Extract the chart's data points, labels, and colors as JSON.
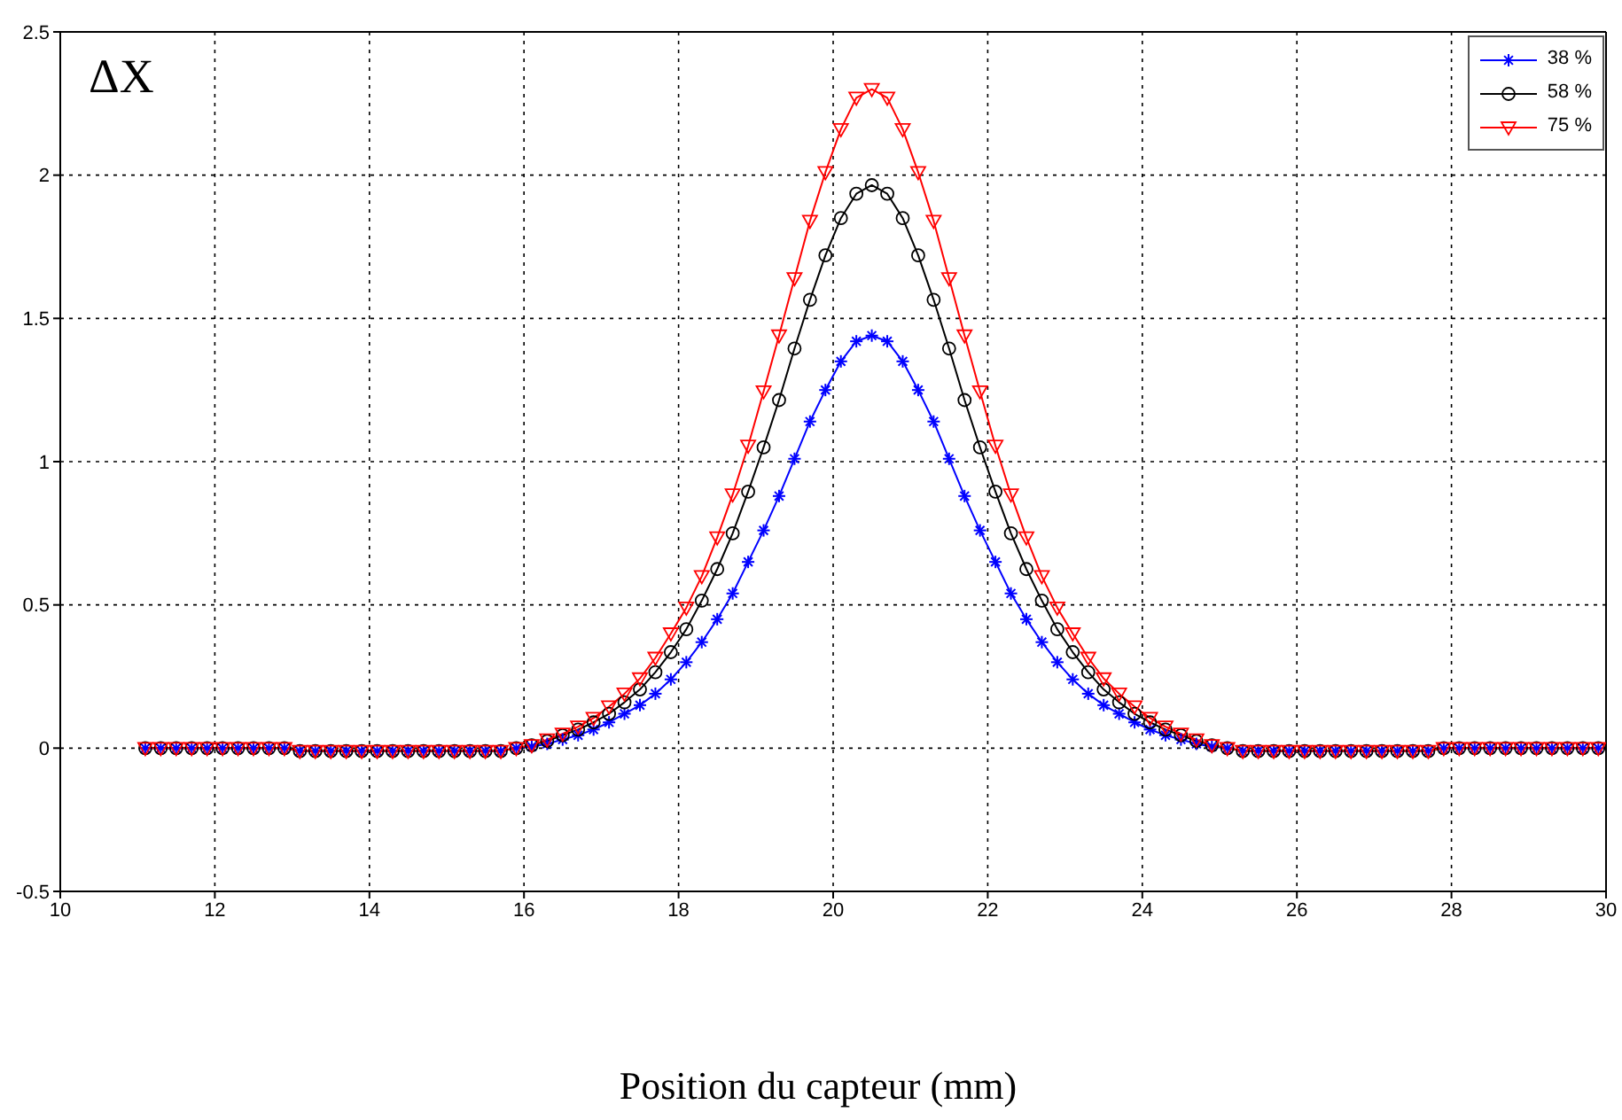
{
  "chart_data": {
    "type": "line",
    "xlabel": "Position du capteur (mm)",
    "ylabel": "ΔX",
    "x": [
      11.1,
      11.3,
      11.5,
      11.7,
      11.9,
      12.1,
      12.3,
      12.5,
      12.7,
      12.9,
      13.1,
      13.3,
      13.5,
      13.7,
      13.9,
      14.1,
      14.3,
      14.5,
      14.7,
      14.9,
      15.1,
      15.3,
      15.5,
      15.7,
      15.9,
      16.1,
      16.3,
      16.5,
      16.7,
      16.9,
      17.1,
      17.3,
      17.5,
      17.7,
      17.9,
      18.1,
      18.3,
      18.5,
      18.7,
      18.9,
      19.1,
      19.3,
      19.5,
      19.7,
      19.9,
      20.1,
      20.3,
      20.5,
      20.7,
      20.9,
      21.1,
      21.3,
      21.5,
      21.7,
      21.9,
      22.1,
      22.3,
      22.5,
      22.7,
      22.9,
      23.1,
      23.3,
      23.5,
      23.7,
      23.9,
      24.1,
      24.3,
      24.5,
      24.7,
      24.9,
      25.1,
      25.3,
      25.5,
      25.7,
      25.9,
      26.1,
      26.3,
      26.5,
      26.7,
      26.9,
      27.1,
      27.3,
      27.5,
      27.7,
      27.9,
      28.1,
      28.3,
      28.5,
      28.7,
      28.9,
      29.1,
      29.3,
      29.5,
      29.7,
      29.9
    ],
    "series": [
      {
        "name": "38 %",
        "color": "#0000ff",
        "marker": "cross",
        "values": [
          0,
          0,
          0,
          0,
          0,
          0,
          0,
          0,
          0,
          0,
          -0.01,
          -0.01,
          -0.01,
          -0.01,
          -0.01,
          -0.01,
          -0.01,
          -0.01,
          -0.01,
          -0.01,
          -0.01,
          -0.01,
          -0.01,
          -0.01,
          0,
          0.005,
          0.015,
          0.03,
          0.045,
          0.065,
          0.09,
          0.12,
          0.15,
          0.19,
          0.24,
          0.3,
          0.37,
          0.45,
          0.54,
          0.65,
          0.76,
          0.88,
          1.01,
          1.14,
          1.25,
          1.35,
          1.42,
          1.44,
          1.42,
          1.35,
          1.25,
          1.14,
          1.01,
          0.88,
          0.76,
          0.65,
          0.54,
          0.45,
          0.37,
          0.3,
          0.24,
          0.19,
          0.15,
          0.12,
          0.09,
          0.065,
          0.045,
          0.03,
          0.015,
          0.005,
          0,
          -0.01,
          -0.01,
          -0.01,
          -0.01,
          -0.01,
          -0.01,
          -0.01,
          -0.01,
          -0.01,
          -0.01,
          -0.01,
          -0.01,
          -0.01,
          0,
          0,
          0,
          0,
          0,
          0,
          0,
          0,
          0,
          0,
          0
        ]
      },
      {
        "name": "58 %",
        "color": "#000000",
        "marker": "circle",
        "values": [
          0,
          0,
          0,
          0,
          0,
          0,
          0,
          0,
          0,
          0,
          -0.01,
          -0.01,
          -0.01,
          -0.01,
          -0.01,
          -0.01,
          -0.01,
          -0.01,
          -0.01,
          -0.01,
          -0.01,
          -0.01,
          -0.01,
          -0.01,
          0,
          0.01,
          0.025,
          0.045,
          0.065,
          0.09,
          0.12,
          0.16,
          0.205,
          0.265,
          0.335,
          0.415,
          0.515,
          0.625,
          0.75,
          0.895,
          1.05,
          1.215,
          1.395,
          1.565,
          1.72,
          1.85,
          1.935,
          1.965,
          1.935,
          1.85,
          1.72,
          1.565,
          1.395,
          1.215,
          1.05,
          0.895,
          0.75,
          0.625,
          0.515,
          0.415,
          0.335,
          0.265,
          0.205,
          0.16,
          0.12,
          0.09,
          0.065,
          0.045,
          0.025,
          0.01,
          0,
          -0.01,
          -0.01,
          -0.01,
          -0.01,
          -0.01,
          -0.01,
          -0.01,
          -0.01,
          -0.01,
          -0.01,
          -0.01,
          -0.01,
          -0.01,
          0,
          0,
          0,
          0,
          0,
          0,
          0,
          0,
          0,
          0,
          0
        ]
      },
      {
        "name": "75 %",
        "color": "#ff0000",
        "marker": "triangle",
        "values": [
          0,
          0,
          0,
          0,
          0,
          0,
          0,
          0,
          0,
          0,
          -0.01,
          -0.01,
          -0.01,
          -0.01,
          -0.01,
          -0.01,
          -0.01,
          -0.01,
          -0.01,
          -0.01,
          -0.01,
          -0.01,
          -0.01,
          -0.01,
          0,
          0.01,
          0.03,
          0.05,
          0.075,
          0.105,
          0.145,
          0.19,
          0.243,
          0.315,
          0.4,
          0.49,
          0.6,
          0.735,
          0.885,
          1.055,
          1.245,
          1.44,
          1.64,
          1.84,
          2.01,
          2.16,
          2.27,
          2.3,
          2.27,
          2.16,
          2.01,
          1.84,
          1.64,
          1.44,
          1.245,
          1.055,
          0.885,
          0.735,
          0.6,
          0.49,
          0.4,
          0.315,
          0.243,
          0.19,
          0.145,
          0.105,
          0.075,
          0.05,
          0.03,
          0.01,
          0,
          -0.01,
          -0.01,
          -0.01,
          -0.01,
          -0.01,
          -0.01,
          -0.01,
          -0.01,
          -0.01,
          -0.01,
          -0.01,
          -0.01,
          -0.01,
          0,
          0,
          0,
          0,
          0,
          0,
          0,
          0,
          0,
          0,
          0
        ]
      }
    ],
    "xlim": [
      10,
      30
    ],
    "xticks": [
      10,
      12,
      14,
      16,
      18,
      20,
      22,
      24,
      26,
      28,
      30
    ],
    "ylim": [
      -0.5,
      2.5
    ],
    "yticks": [
      -0.5,
      0,
      0.5,
      1,
      1.5,
      2,
      2.5
    ],
    "grid": true,
    "legend": "top right",
    "line_style": "solid"
  }
}
